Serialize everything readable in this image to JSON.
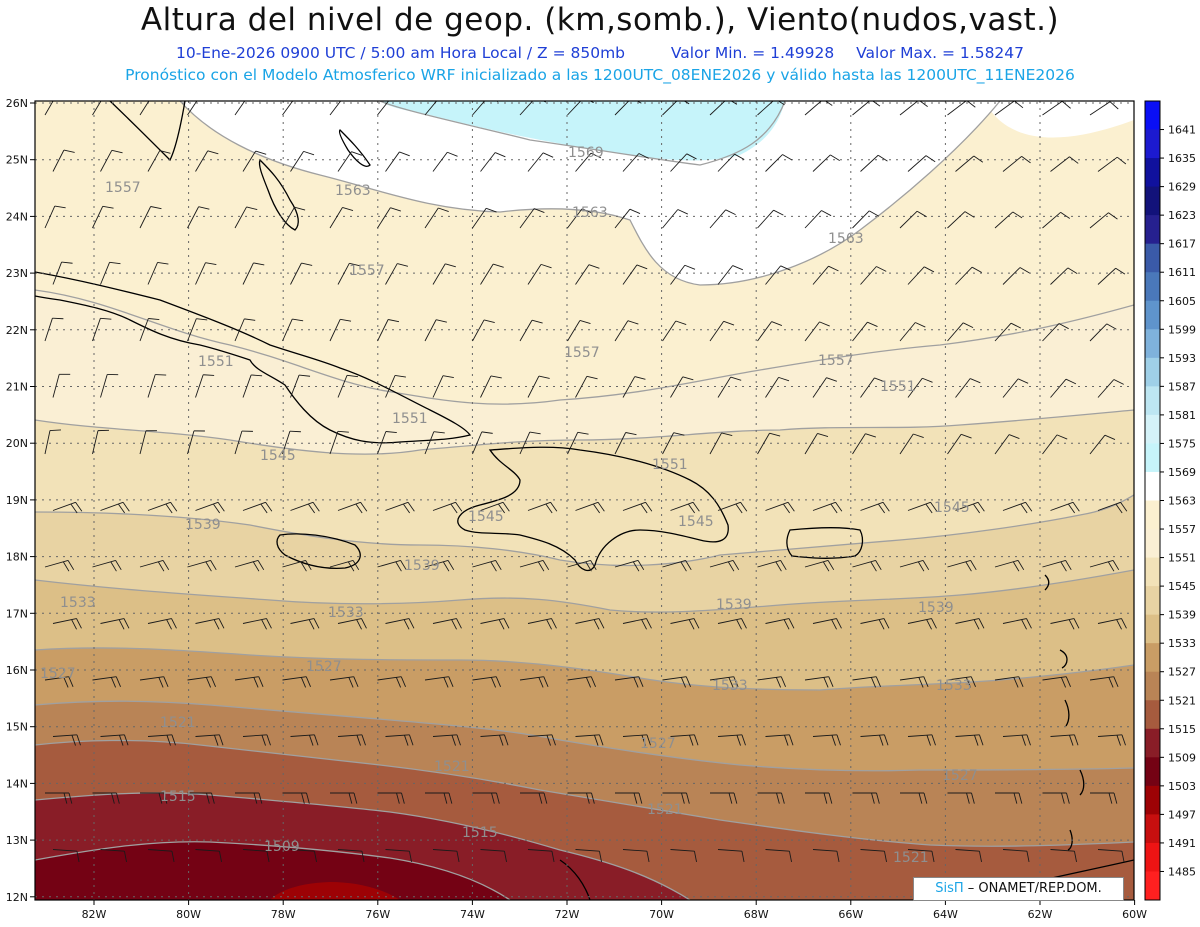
{
  "header": {
    "title": "Altura del nivel de geop. (km,somb.), Viento(nudos,vast.)",
    "date_line": "10-Ene-2026  0900 UTC / 5:00 am Hora Local / Z = 850mb",
    "min_label": "Valor Min. = 1.49928",
    "max_label": "Valor Max. = 1.58247",
    "model_line": "Pronóstico con el Modelo Atmosferico WRF inicializado a las 1200UTC_08ENE2026 y válido hasta las  1200UTC_11ENE2026"
  },
  "credit": {
    "brand": "SisΠ",
    "text": " – ONAMET/REP.DOM."
  },
  "axes": {
    "lat_labels": [
      "26N",
      "25N",
      "24N",
      "23N",
      "22N",
      "21N",
      "20N",
      "19N",
      "18N",
      "17N",
      "16N",
      "15N",
      "14N",
      "13N",
      "12N"
    ],
    "lon_labels": [
      "82W",
      "80W",
      "78W",
      "76W",
      "74W",
      "72W",
      "70W",
      "68W",
      "66W",
      "64W",
      "62W",
      "60W"
    ]
  },
  "colorbar": {
    "labels": [
      "1641",
      "1635",
      "1629",
      "1623",
      "1617",
      "1611",
      "1605",
      "1599",
      "1593",
      "1587",
      "1581",
      "1575",
      "1569",
      "1563",
      "1557",
      "1551",
      "1545",
      "1539",
      "1533",
      "1527",
      "1521",
      "1515",
      "1509",
      "1503",
      "1497",
      "1491",
      "1485"
    ],
    "colors": [
      "#0a0ff5",
      "#1c1ad0",
      "#10119d",
      "#12127a",
      "#26208f",
      "#3a5aa8",
      "#4a78ba",
      "#5f94cc",
      "#7fb2dc",
      "#9fd0e8",
      "#bde6f2",
      "#d4f2f8",
      "#c6f4fa",
      "#ffffff",
      "#fbf0d0",
      "#faefd4",
      "#f2e2b8",
      "#e8d3a3",
      "#dcbf87",
      "#c99d65",
      "#b98456",
      "#a65b3e",
      "#891d27",
      "#740214",
      "#9d0205",
      "#c70f0f",
      "#ee1414",
      "#ff2020"
    ]
  },
  "contour_labels": [
    "1569",
    "1563",
    "1563",
    "1563",
    "1557",
    "1557",
    "1557",
    "1557",
    "1551",
    "1551",
    "1551",
    "1551",
    "1545",
    "1545",
    "1545",
    "1545",
    "1539",
    "1539",
    "1539",
    "1539",
    "1533",
    "1533",
    "1533",
    "1533",
    "1527",
    "1527",
    "1527",
    "1527",
    "1521",
    "1521",
    "1521",
    "1521",
    "1515",
    "1515",
    "1509"
  ],
  "legend_colors": {
    "fill_white": "#ffffff",
    "fill_cyan": "#c6f4fa",
    "fill_1557": "#fbf0d0",
    "fill_1551": "#faefd4",
    "fill_1545": "#f2e2b8",
    "fill_1539": "#e8d3a3",
    "fill_1533": "#dcbf87",
    "fill_1527": "#c99d65",
    "fill_1521": "#b98456",
    "fill_1515": "#a65b3e",
    "fill_1509": "#891d27",
    "fill_1503": "#740214",
    "fill_1497": "#9d0205"
  }
}
